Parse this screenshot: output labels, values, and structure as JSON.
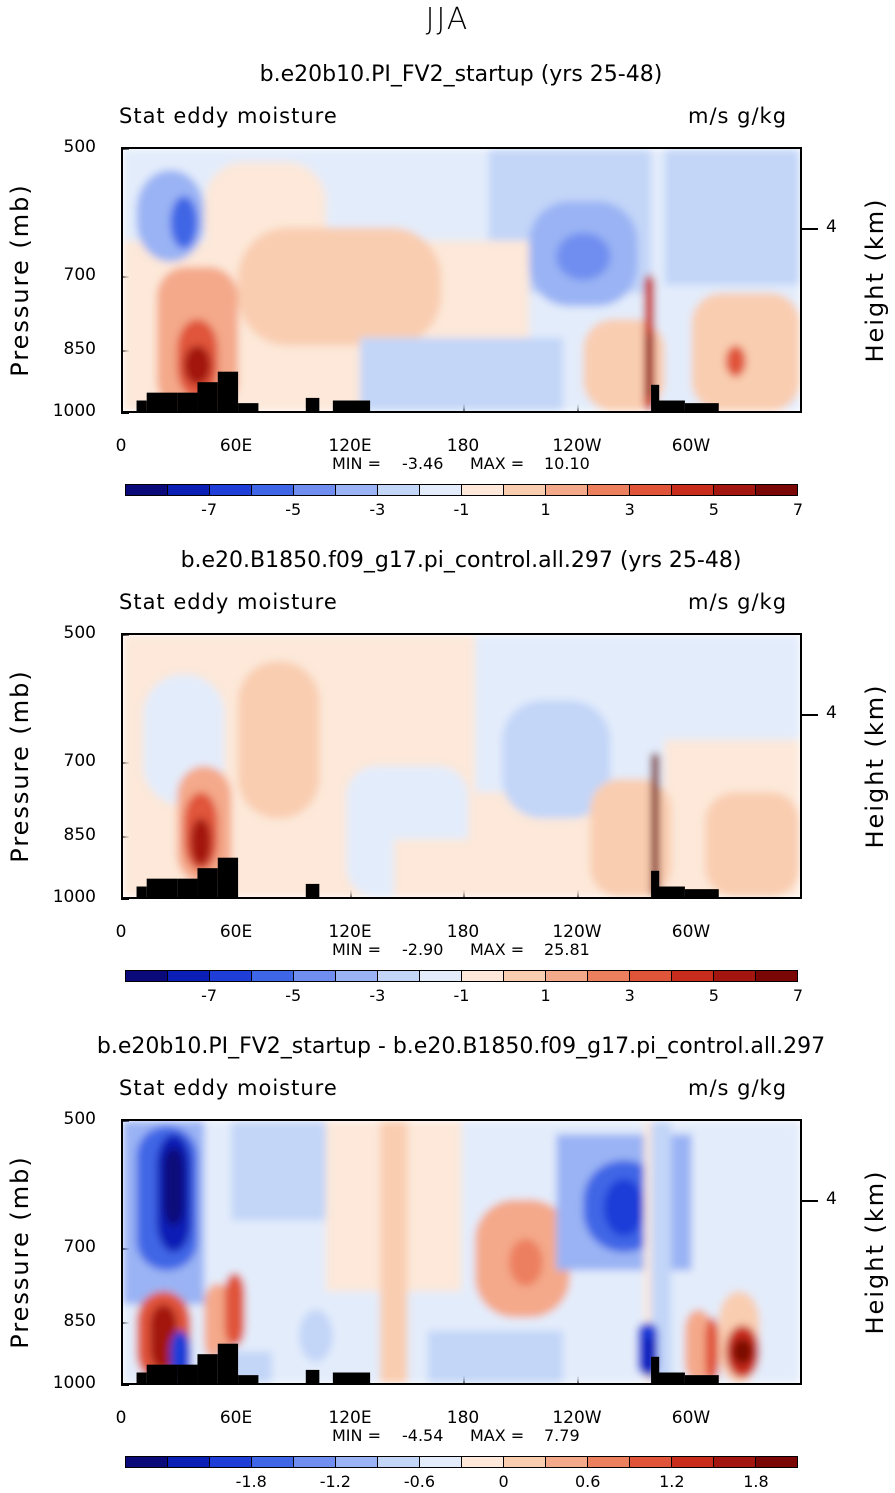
{
  "title": "JJA",
  "chart_data": [
    {
      "type": "contour",
      "title": "b.e20b10.PI_FV2_startup (yrs 25-48)",
      "left_label": "Stat eddy moisture",
      "right_label": "m/s g/kg",
      "ylabel": "Pressure (mb)",
      "y2label": "Height (km)",
      "yticks": [
        "500",
        "700",
        "850",
        "1000"
      ],
      "y2ticks": [
        "4"
      ],
      "xticks": [
        "0",
        "60E",
        "120E",
        "180",
        "120W",
        "60W"
      ],
      "min_label": "MIN =",
      "min": "-3.46",
      "max_label": "MAX =",
      "max": "10.10",
      "colorbar_labels": [
        "-7",
        "-5",
        "-3",
        "-1",
        "1",
        "3",
        "5",
        "7"
      ]
    },
    {
      "type": "contour",
      "title": "b.e20.B1850.f09_g17.pi_control.all.297 (yrs 25-48)",
      "left_label": "Stat eddy moisture",
      "right_label": "m/s g/kg",
      "ylabel": "Pressure (mb)",
      "y2label": "Height (km)",
      "yticks": [
        "500",
        "700",
        "850",
        "1000"
      ],
      "y2ticks": [
        "4"
      ],
      "xticks": [
        "0",
        "60E",
        "120E",
        "180",
        "120W",
        "60W"
      ],
      "min_label": "MIN =",
      "min": "-2.90",
      "max_label": "MAX =",
      "max": "25.81",
      "colorbar_labels": [
        "-7",
        "-5",
        "-3",
        "-1",
        "1",
        "3",
        "5",
        "7"
      ]
    },
    {
      "type": "contour",
      "title": "b.e20b10.PI_FV2_startup - b.e20.B1850.f09_g17.pi_control.all.297",
      "left_label": "Stat eddy moisture",
      "right_label": "m/s g/kg",
      "ylabel": "Pressure (mb)",
      "y2label": "Height (km)",
      "yticks": [
        "500",
        "700",
        "850",
        "1000"
      ],
      "y2ticks": [
        "4"
      ],
      "xticks": [
        "0",
        "60E",
        "120E",
        "180",
        "120W",
        "60W"
      ],
      "min_label": "MIN =",
      "min": "-4.54",
      "max_label": "MAX =",
      "max": "7.79",
      "colorbar_labels": [
        "-1.8",
        "-1.2",
        "-0.6",
        "0",
        "0.6",
        "1.2",
        "1.8"
      ]
    }
  ],
  "colors": {
    "bins": [
      "#0a0a7a",
      "#0b1fb5",
      "#1f3ed8",
      "#3f66e6",
      "#6f8ef0",
      "#9ab3f4",
      "#c3d6f8",
      "#e3ecfb",
      "#fde8d9",
      "#f9cdb0",
      "#f4a98a",
      "#ec7f5e",
      "#e0553a",
      "#c82c1c",
      "#a3150f",
      "#7a0706"
    ],
    "land": "#000000"
  }
}
